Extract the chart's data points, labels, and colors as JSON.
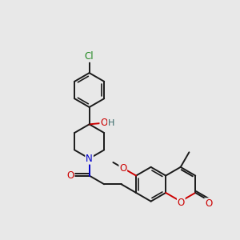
{
  "background_color": "#e8e8e8",
  "figsize": [
    3.0,
    3.0
  ],
  "dpi": 100,
  "bond_color": "#1a1a1a",
  "bond_width": 1.4,
  "atom_colors": {
    "O": "#cc0000",
    "N": "#0000cc",
    "Cl": "#228822",
    "H": "#336666",
    "C": "#1a1a1a"
  },
  "font_size": 8.5,
  "BL": 0.72
}
